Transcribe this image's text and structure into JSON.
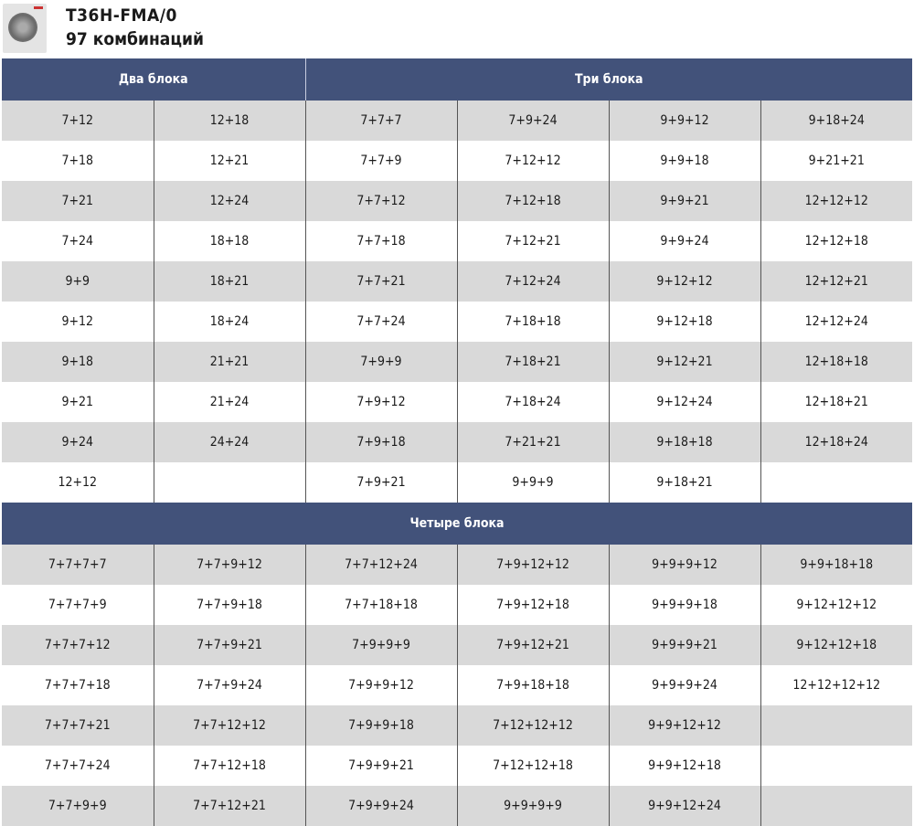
{
  "title": "T36H-FMA/0",
  "subtitle": "97 комбинаций",
  "headers": {
    "two": "Два блока",
    "three": "Три блока",
    "four": "Четыре блока"
  },
  "top_rows": [
    [
      "7+12",
      "12+18",
      "7+7+7",
      "7+9+24",
      "9+9+12",
      "9+18+24"
    ],
    [
      "7+18",
      "12+21",
      "7+7+9",
      "7+12+12",
      "9+9+18",
      "9+21+21"
    ],
    [
      "7+21",
      "12+24",
      "7+7+12",
      "7+12+18",
      "9+9+21",
      "12+12+12"
    ],
    [
      "7+24",
      "18+18",
      "7+7+18",
      "7+12+21",
      "9+9+24",
      "12+12+18"
    ],
    [
      "9+9",
      "18+21",
      "7+7+21",
      "7+12+24",
      "9+12+12",
      "12+12+21"
    ],
    [
      "9+12",
      "18+24",
      "7+7+24",
      "7+18+18",
      "9+12+18",
      "12+12+24"
    ],
    [
      "9+18",
      "21+21",
      "7+9+9",
      "7+18+21",
      "9+12+21",
      "12+18+18"
    ],
    [
      "9+21",
      "21+24",
      "7+9+12",
      "7+18+24",
      "9+12+24",
      "12+18+21"
    ],
    [
      "9+24",
      "24+24",
      "7+9+18",
      "7+21+21",
      "9+18+18",
      "12+18+24"
    ],
    [
      "12+12",
      "",
      "7+9+21",
      "9+9+9",
      "9+18+21",
      ""
    ]
  ],
  "bottom_rows": [
    [
      "7+7+7+7",
      "7+7+9+12",
      "7+7+12+24",
      "7+9+12+12",
      "9+9+9+12",
      "9+9+18+18"
    ],
    [
      "7+7+7+9",
      "7+7+9+18",
      "7+7+18+18",
      "7+9+12+18",
      "9+9+9+18",
      "9+12+12+12"
    ],
    [
      "7+7+7+12",
      "7+7+9+21",
      "7+9+9+9",
      "7+9+12+21",
      "9+9+9+21",
      "9+12+12+18"
    ],
    [
      "7+7+7+18",
      "7+7+9+24",
      "7+9+9+12",
      "7+9+18+18",
      "9+9+9+24",
      "12+12+12+12"
    ],
    [
      "7+7+7+21",
      "7+7+12+12",
      "7+9+9+18",
      "7+12+12+12",
      "9+9+12+12",
      ""
    ],
    [
      "7+7+7+24",
      "7+7+12+18",
      "7+9+9+21",
      "7+12+12+18",
      "9+9+12+18",
      ""
    ],
    [
      "7+7+9+9",
      "7+7+12+21",
      "7+9+9+24",
      "9+9+9+9",
      "9+9+12+24",
      ""
    ]
  ]
}
